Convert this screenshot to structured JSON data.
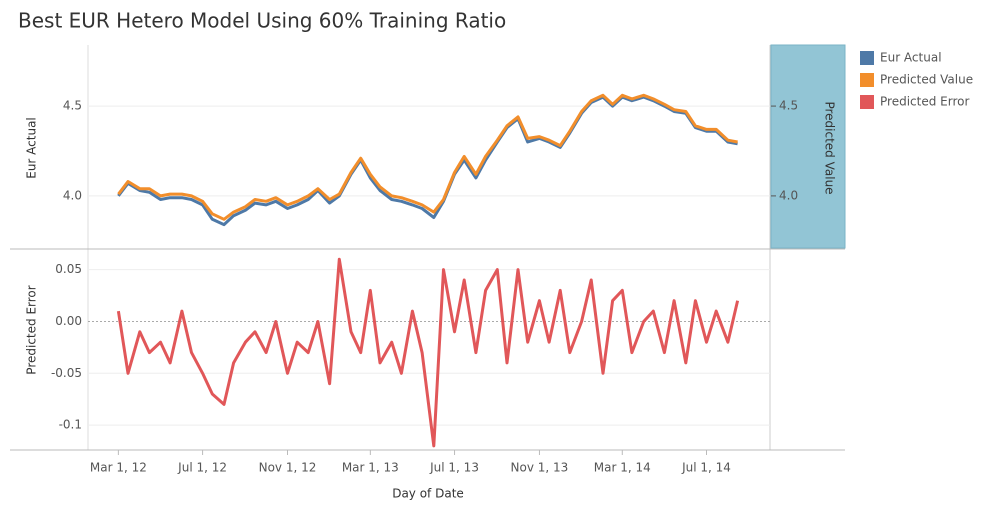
{
  "chart_data": [
    {
      "type": "line",
      "title": "Best EUR Hetero Model Using 60% Training Ratio",
      "ylabel": "Eur Actual",
      "y2label": "Predicted Value",
      "x": [
        "2012-03-01",
        "2012-03-15",
        "2012-04-01",
        "2012-04-15",
        "2012-05-01",
        "2012-05-15",
        "2012-06-01",
        "2012-06-15",
        "2012-07-01",
        "2012-07-15",
        "2012-08-01",
        "2012-08-15",
        "2012-09-01",
        "2012-09-15",
        "2012-10-01",
        "2012-10-15",
        "2012-11-01",
        "2012-11-15",
        "2012-12-01",
        "2012-12-15",
        "2013-01-01",
        "2013-01-15",
        "2013-02-01",
        "2013-02-15",
        "2013-03-01",
        "2013-03-15",
        "2013-04-01",
        "2013-04-15",
        "2013-05-01",
        "2013-05-15",
        "2013-06-01",
        "2013-06-15",
        "2013-07-01",
        "2013-07-15",
        "2013-08-01",
        "2013-08-15",
        "2013-09-01",
        "2013-09-15",
        "2013-10-01",
        "2013-10-15",
        "2013-11-01",
        "2013-11-15",
        "2013-12-01",
        "2013-12-15",
        "2014-01-01",
        "2014-01-15",
        "2014-02-01",
        "2014-02-15",
        "2014-03-01",
        "2014-03-15",
        "2014-04-01",
        "2014-04-15",
        "2014-05-01",
        "2014-05-15",
        "2014-06-01",
        "2014-06-15",
        "2014-07-01",
        "2014-07-15",
        "2014-08-01",
        "2014-08-15"
      ],
      "xlim": [
        "2012-01-17",
        "2014-10-01"
      ],
      "ylim": [
        3.71,
        4.84
      ],
      "yticks": [
        {
          "value": 4,
          "label": "4.0"
        },
        4.5
      ],
      "y2lim": [
        3.71,
        4.84
      ],
      "y2ticks": [
        {
          "value": 4,
          "label": "4.0"
        },
        4.5
      ],
      "grid": true,
      "series": [
        {
          "name": "Eur Actual",
          "color": "#4e79a7",
          "values": [
            4.0,
            4.07,
            4.03,
            4.02,
            3.98,
            3.99,
            3.99,
            3.98,
            3.95,
            3.87,
            3.84,
            3.89,
            3.92,
            3.96,
            3.95,
            3.97,
            3.93,
            3.95,
            3.98,
            4.03,
            3.96,
            4.0,
            4.12,
            4.2,
            4.1,
            4.03,
            3.98,
            3.97,
            3.95,
            3.93,
            3.88,
            3.97,
            4.12,
            4.2,
            4.1,
            4.2,
            4.3,
            4.38,
            4.43,
            4.3,
            4.32,
            4.3,
            4.27,
            4.35,
            4.46,
            4.52,
            4.55,
            4.5,
            4.55,
            4.53,
            4.55,
            4.53,
            4.5,
            4.47,
            4.46,
            4.38,
            4.36,
            4.36,
            4.3,
            4.29
          ]
        },
        {
          "name": "Predicted Value",
          "color": "#f28e2b",
          "axis": "y2",
          "values": [
            4.01,
            4.08,
            4.04,
            4.04,
            4.0,
            4.01,
            4.01,
            4.0,
            3.97,
            3.9,
            3.87,
            3.91,
            3.94,
            3.98,
            3.97,
            3.99,
            3.95,
            3.97,
            4.0,
            4.04,
            3.98,
            4.01,
            4.13,
            4.21,
            4.12,
            4.05,
            4.0,
            3.99,
            3.97,
            3.95,
            3.91,
            3.98,
            4.13,
            4.22,
            4.12,
            4.22,
            4.31,
            4.39,
            4.44,
            4.32,
            4.33,
            4.31,
            4.28,
            4.36,
            4.47,
            4.53,
            4.56,
            4.51,
            4.56,
            4.54,
            4.56,
            4.54,
            4.51,
            4.48,
            4.47,
            4.39,
            4.37,
            4.37,
            4.31,
            4.3
          ]
        }
      ]
    },
    {
      "type": "line",
      "xlabel": "Day of Date",
      "ylabel": "Predicted Error",
      "x": [
        "2012-03-01",
        "2012-03-15",
        "2012-04-01",
        "2012-04-15",
        "2012-05-01",
        "2012-05-15",
        "2012-06-01",
        "2012-06-15",
        "2012-07-01",
        "2012-07-15",
        "2012-08-01",
        "2012-08-15",
        "2012-09-01",
        "2012-09-15",
        "2012-10-01",
        "2012-10-15",
        "2012-11-01",
        "2012-11-15",
        "2012-12-01",
        "2012-12-15",
        "2013-01-01",
        "2013-01-15",
        "2013-02-01",
        "2013-02-15",
        "2013-03-01",
        "2013-03-15",
        "2013-04-01",
        "2013-04-15",
        "2013-05-01",
        "2013-05-15",
        "2013-06-01",
        "2013-06-15",
        "2013-07-01",
        "2013-07-15",
        "2013-08-01",
        "2013-08-15",
        "2013-09-01",
        "2013-09-15",
        "2013-10-01",
        "2013-10-15",
        "2013-11-01",
        "2013-11-15",
        "2013-12-01",
        "2013-12-15",
        "2014-01-01",
        "2014-01-15",
        "2014-02-01",
        "2014-02-15",
        "2014-03-01",
        "2014-03-15",
        "2014-04-01",
        "2014-04-15",
        "2014-05-01",
        "2014-05-15",
        "2014-06-01",
        "2014-06-15",
        "2014-07-01",
        "2014-07-15",
        "2014-08-01",
        "2014-08-15"
      ],
      "xlim": [
        "2012-01-17",
        "2014-10-01"
      ],
      "xticks": [
        {
          "value": "2012-03-01",
          "label": "Mar 1, 12"
        },
        {
          "value": "2012-07-01",
          "label": "Jul 1, 12"
        },
        {
          "value": "2012-11-01",
          "label": "Nov 1, 12"
        },
        {
          "value": "2013-03-01",
          "label": "Mar 1, 13"
        },
        {
          "value": "2013-07-01",
          "label": "Jul 1, 13"
        },
        {
          "value": "2013-11-01",
          "label": "Nov 1, 13"
        },
        {
          "value": "2014-03-01",
          "label": "Mar 1, 14"
        },
        {
          "value": "2014-07-01",
          "label": "Jul 1, 14"
        }
      ],
      "ylim": [
        -0.124,
        0.067
      ],
      "yticks": [
        -0.1,
        -0.05,
        {
          "value": 0,
          "label": "0.00"
        },
        0.05
      ],
      "grid": true,
      "series": [
        {
          "name": "Predicted Error",
          "color": "#e15759",
          "values": [
            0.01,
            -0.05,
            -0.01,
            -0.03,
            -0.02,
            -0.04,
            0.01,
            -0.03,
            -0.05,
            -0.07,
            -0.08,
            -0.04,
            -0.02,
            -0.01,
            -0.03,
            0.0,
            -0.05,
            -0.02,
            -0.03,
            0.0,
            -0.06,
            0.06,
            -0.01,
            -0.03,
            0.03,
            -0.04,
            -0.02,
            -0.05,
            0.01,
            -0.03,
            -0.12,
            0.05,
            -0.01,
            0.04,
            -0.03,
            0.03,
            0.05,
            -0.04,
            0.05,
            -0.02,
            0.02,
            -0.02,
            0.03,
            -0.03,
            0.0,
            0.04,
            -0.05,
            0.02,
            0.03,
            -0.03,
            0.0,
            0.01,
            -0.03,
            0.02,
            -0.04,
            0.02,
            -0.02,
            0.01,
            -0.02,
            0.02
          ]
        }
      ]
    }
  ]
}
